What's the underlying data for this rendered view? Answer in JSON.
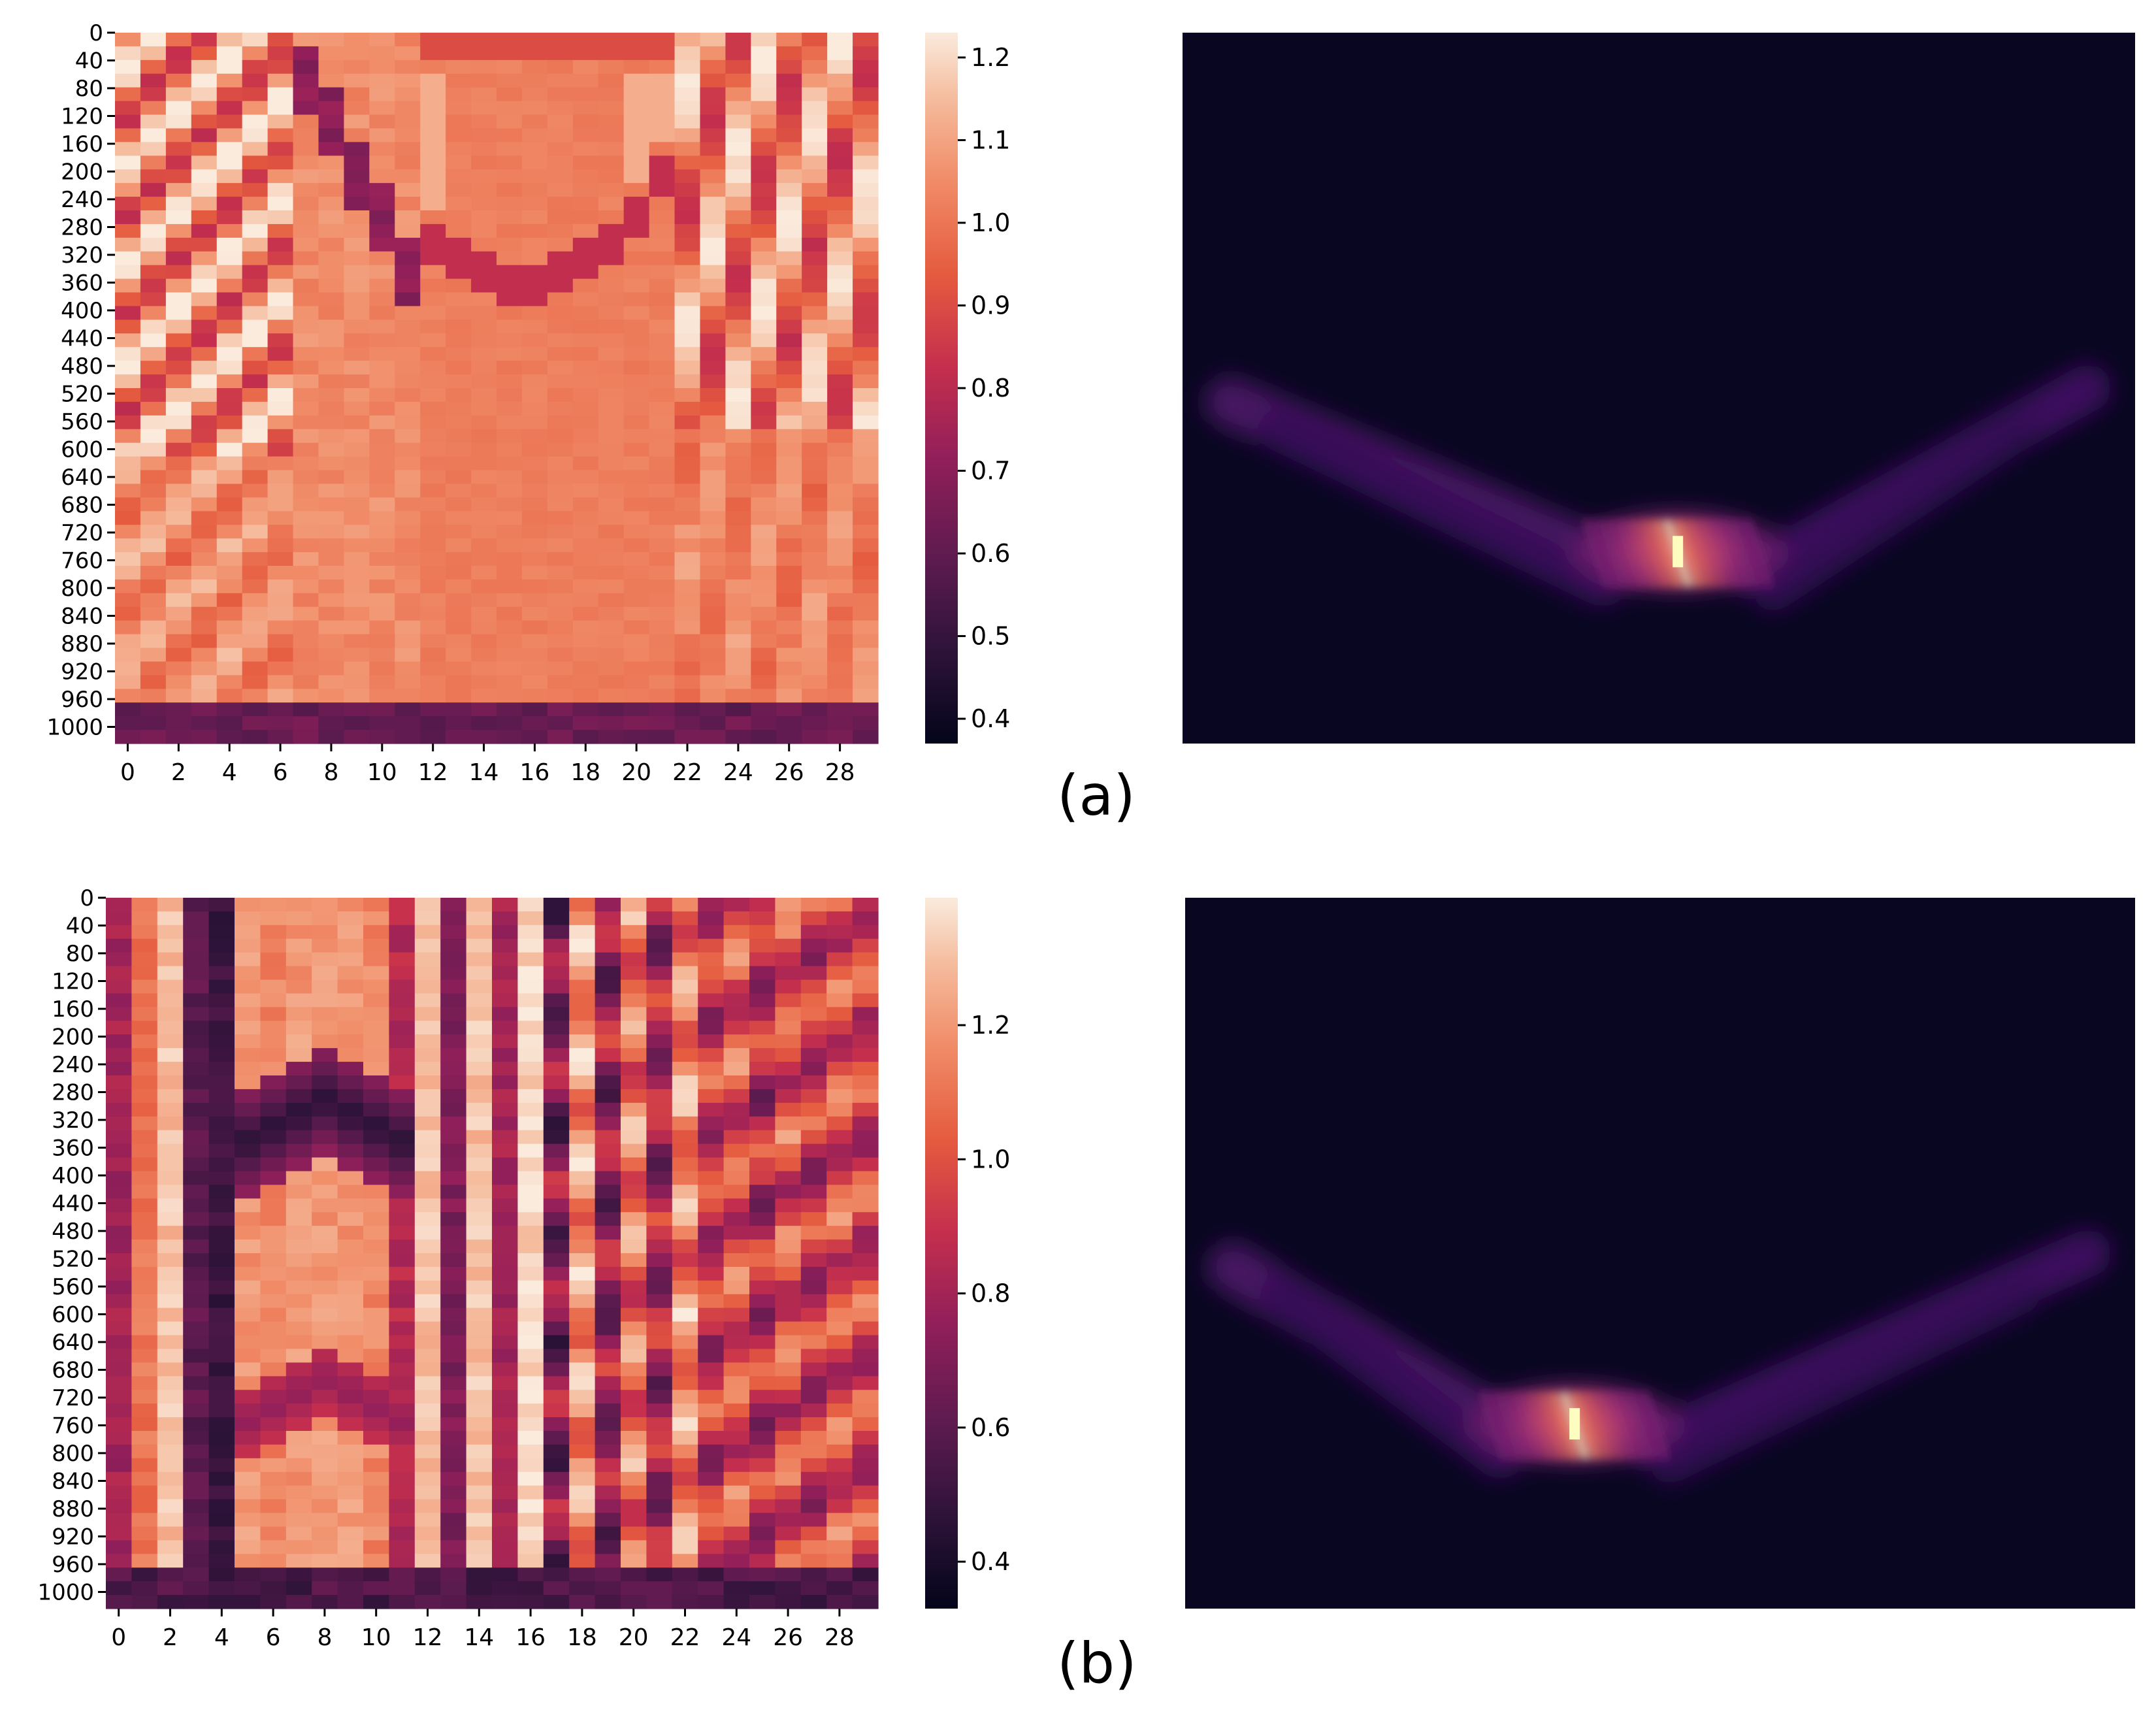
{
  "panel_labels": [
    "(a)",
    "(b)"
  ],
  "chart_data": [
    {
      "panel": "(a)",
      "type": "heatmap",
      "title": "",
      "xlabel": "",
      "ylabel": "",
      "x_ticks": [
        0,
        2,
        4,
        6,
        8,
        10,
        12,
        14,
        16,
        18,
        20,
        22,
        24,
        26,
        28
      ],
      "y_ticks": [
        0,
        40,
        80,
        120,
        160,
        200,
        240,
        280,
        320,
        360,
        400,
        440,
        480,
        520,
        560,
        600,
        640,
        680,
        720,
        760,
        800,
        840,
        880,
        920,
        960,
        1000
      ],
      "x_range": [
        0,
        30
      ],
      "y_range": [
        0,
        1024
      ],
      "n_columns": 30,
      "colorbar": {
        "ticks": [
          1.2,
          1.1,
          1.0,
          0.9,
          0.8,
          0.7,
          0.6,
          0.5,
          0.4
        ],
        "range": [
          0.37,
          1.23
        ]
      },
      "colormap": "rocket",
      "description_values": {
        "background_level": 1.02,
        "min": 0.37,
        "max": 1.23
      }
    },
    {
      "panel": "(a)",
      "type": "heatmap",
      "title": "",
      "axes_visible": false,
      "colormap": "magma",
      "peak_x_fraction": 0.52,
      "peak_y_fraction": 0.73
    },
    {
      "panel": "(b)",
      "type": "heatmap",
      "title": "",
      "xlabel": "",
      "ylabel": "",
      "x_ticks": [
        0,
        2,
        4,
        6,
        8,
        10,
        12,
        14,
        16,
        18,
        20,
        22,
        24,
        26,
        28
      ],
      "y_ticks": [
        0,
        40,
        80,
        120,
        160,
        200,
        240,
        280,
        320,
        360,
        400,
        440,
        480,
        520,
        560,
        600,
        640,
        680,
        720,
        760,
        800,
        840,
        880,
        920,
        960,
        1000
      ],
      "x_range": [
        0,
        30
      ],
      "y_range": [
        0,
        1024
      ],
      "n_columns": 30,
      "colorbar": {
        "ticks": [
          1.2,
          1.0,
          0.8,
          0.6,
          0.4
        ],
        "range": [
          0.33,
          1.39
        ]
      },
      "colormap": "rocket",
      "description_values": {
        "background_level": 1.05,
        "min": 0.33,
        "max": 1.39
      }
    },
    {
      "panel": "(b)",
      "type": "heatmap",
      "title": "",
      "axes_visible": false,
      "colormap": "magma",
      "peak_x_fraction": 0.41,
      "peak_y_fraction": 0.74
    }
  ]
}
